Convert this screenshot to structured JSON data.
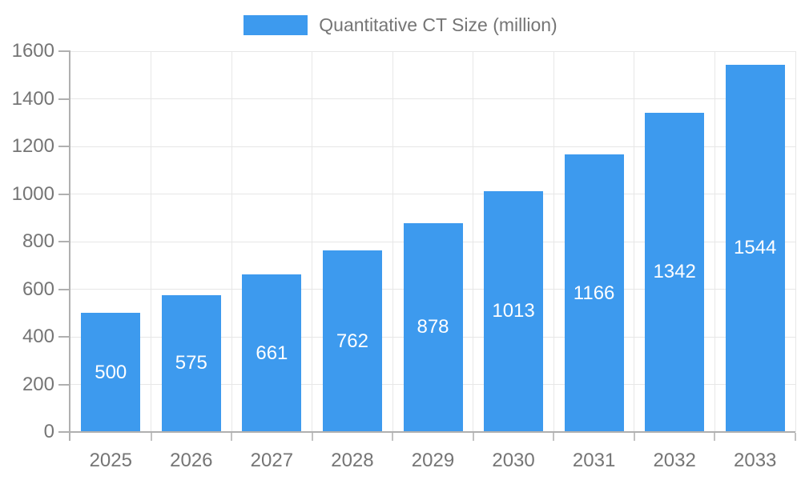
{
  "chart_data": {
    "type": "bar",
    "title": "Quantitative CT Size (million)",
    "legend": {
      "label": "Quantitative CT Size (million)",
      "position": "top-center"
    },
    "categories": [
      "2025",
      "2026",
      "2027",
      "2028",
      "2029",
      "2030",
      "2031",
      "2032",
      "2033"
    ],
    "series": [
      {
        "name": "Quantitative CT Size (million)",
        "values": [
          500,
          575,
          661,
          762,
          878,
          1013,
          1166,
          1342,
          1544
        ]
      }
    ],
    "xlabel": "",
    "ylabel": "",
    "ylim": [
      0,
      1600
    ],
    "yticks": [
      0,
      200,
      400,
      600,
      800,
      1000,
      1200,
      1400,
      1600
    ],
    "grid": true,
    "bar_labels": {
      "visible": true,
      "position": "inside-center"
    }
  },
  "colors": {
    "bar": "#3d9aee",
    "bar_label": "#ffffff",
    "grid": "#e7e7e7",
    "axis": "#b0b0b0",
    "tick": "#c2c2c2",
    "text": "#757575",
    "background": "#ffffff"
  }
}
